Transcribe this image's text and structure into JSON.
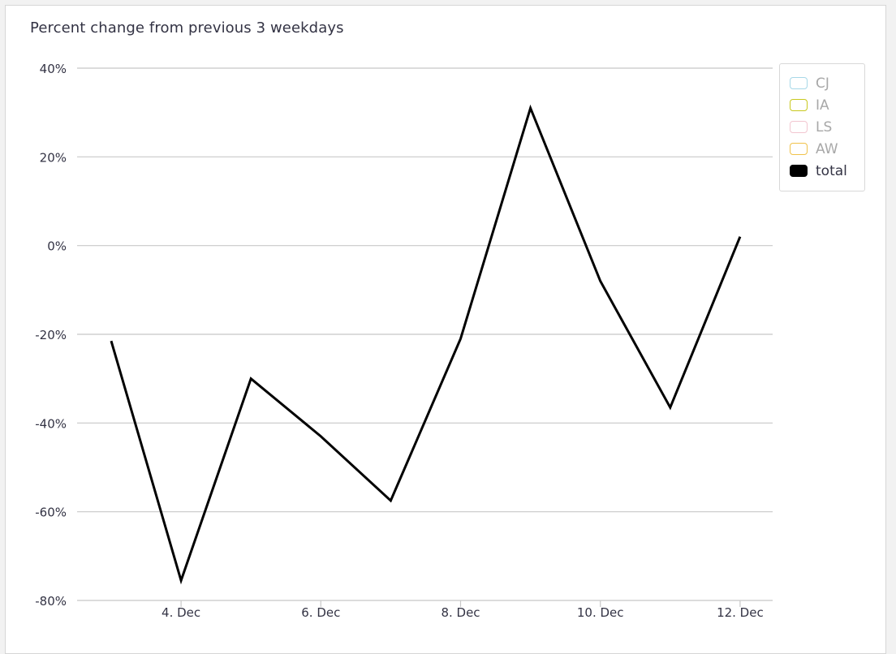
{
  "chart_data": {
    "type": "line",
    "title": "Percent change from previous 3 weekdays",
    "xlabel": "",
    "ylabel": "",
    "ylim": [
      -80,
      40
    ],
    "yticks": [
      "40%",
      "20%",
      "0%",
      "-20%",
      "-40%",
      "-60%",
      "-80%"
    ],
    "ytick_values": [
      40,
      20,
      0,
      -20,
      -40,
      -60,
      -80
    ],
    "xlim": [
      3,
      12.5
    ],
    "xticks": [
      "4. Dec",
      "6. Dec",
      "8. Dec",
      "10. Dec",
      "12. Dec"
    ],
    "xtick_values": [
      4,
      6,
      8,
      10,
      12
    ],
    "grid": true,
    "legend_position": "top-right",
    "series": [
      {
        "name": "total",
        "color": "#000000",
        "x": [
          3,
          4,
          5,
          6,
          7,
          8,
          9,
          10,
          11,
          12
        ],
        "values": [
          -21.5,
          -75.5,
          -30,
          -43,
          -57.5,
          -21,
          31,
          -8,
          -36.5,
          2
        ]
      }
    ],
    "legend": [
      {
        "name": "CJ",
        "color": "#a7d8e8",
        "visible": false
      },
      {
        "name": "IA",
        "color": "#c8c81e",
        "visible": false
      },
      {
        "name": "LS",
        "color": "#f2c6d0",
        "visible": false
      },
      {
        "name": "AW",
        "color": "#f0c24a",
        "visible": false
      },
      {
        "name": "total",
        "color": "#000000",
        "visible": true
      }
    ]
  }
}
